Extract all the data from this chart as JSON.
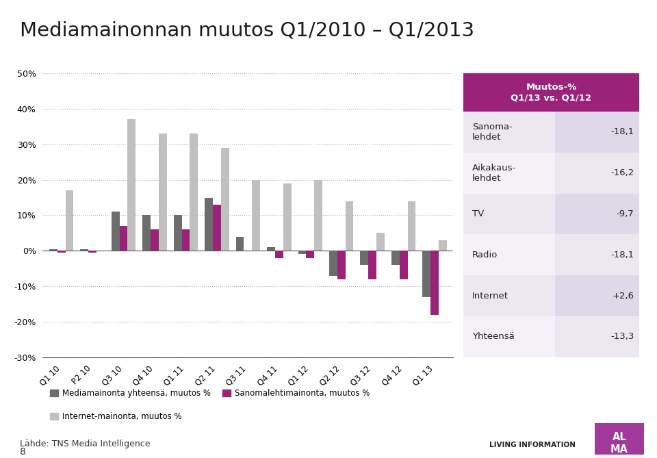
{
  "title": "Mediamainonnan muutos Q1/2010 – Q1/2013",
  "categories": [
    "Q1 10",
    "P2 10",
    "Q3 10",
    "Q4 10",
    "Q1 11",
    "Q2 11",
    "Q3 11",
    "Q4 11",
    "Q1 12",
    "Q2 12",
    "Q3 12",
    "Q4 12",
    "Q1 13"
  ],
  "series_total": [
    0.5,
    0.5,
    11,
    10,
    10,
    15,
    4,
    1,
    -1,
    -7,
    -4,
    -4,
    -13
  ],
  "series_sanomalehti": [
    -0.5,
    -0.5,
    7,
    6,
    6,
    13,
    0,
    -2,
    -2,
    -8,
    -8,
    -8,
    -18
  ],
  "series_internet": [
    17,
    0,
    37,
    33,
    33,
    29,
    20,
    19,
    20,
    14,
    5,
    14,
    3
  ],
  "color_total": "#6d6d6d",
  "color_sanomalehti": "#9b2279",
  "color_internet": "#c0c0c0",
  "ylim": [
    -30,
    50
  ],
  "yticks": [
    -30,
    -20,
    -10,
    0,
    10,
    20,
    30,
    40,
    50
  ],
  "ytick_labels": [
    "-30%",
    "-20%",
    "-10%",
    "0%",
    "10%",
    "20%",
    "30%",
    "40%",
    "50%"
  ],
  "legend_labels": [
    "Mediamainonta yhteensä, muutos %",
    "Sanomalehtimainonta, muutos %",
    "Internet-mainonta, muutos %"
  ],
  "table_header": "Muutos-%\nQ1/13 vs. Q1/12",
  "table_rows": [
    [
      "Sanoma-\nlehdet",
      "-18,1"
    ],
    [
      "Aikakaus-\nlehdet",
      "-16,2"
    ],
    [
      "TV",
      "-9,7"
    ],
    [
      "Radio",
      "-18,1"
    ],
    [
      "Internet",
      "+2,6"
    ],
    [
      "Yhteensä",
      "-13,3"
    ]
  ],
  "table_header_bg": "#9b2279",
  "table_row_bg_light": "#ede8f0",
  "table_row_bg_white": "#f5f2f7",
  "table_val_bg_light": "#dfd8e8",
  "table_val_bg_white": "#ede8f0",
  "source_text": "Lähde: TNS Media Intelligence",
  "page_number": "8",
  "background_color": "#ffffff",
  "alma_color": "#a0399a"
}
